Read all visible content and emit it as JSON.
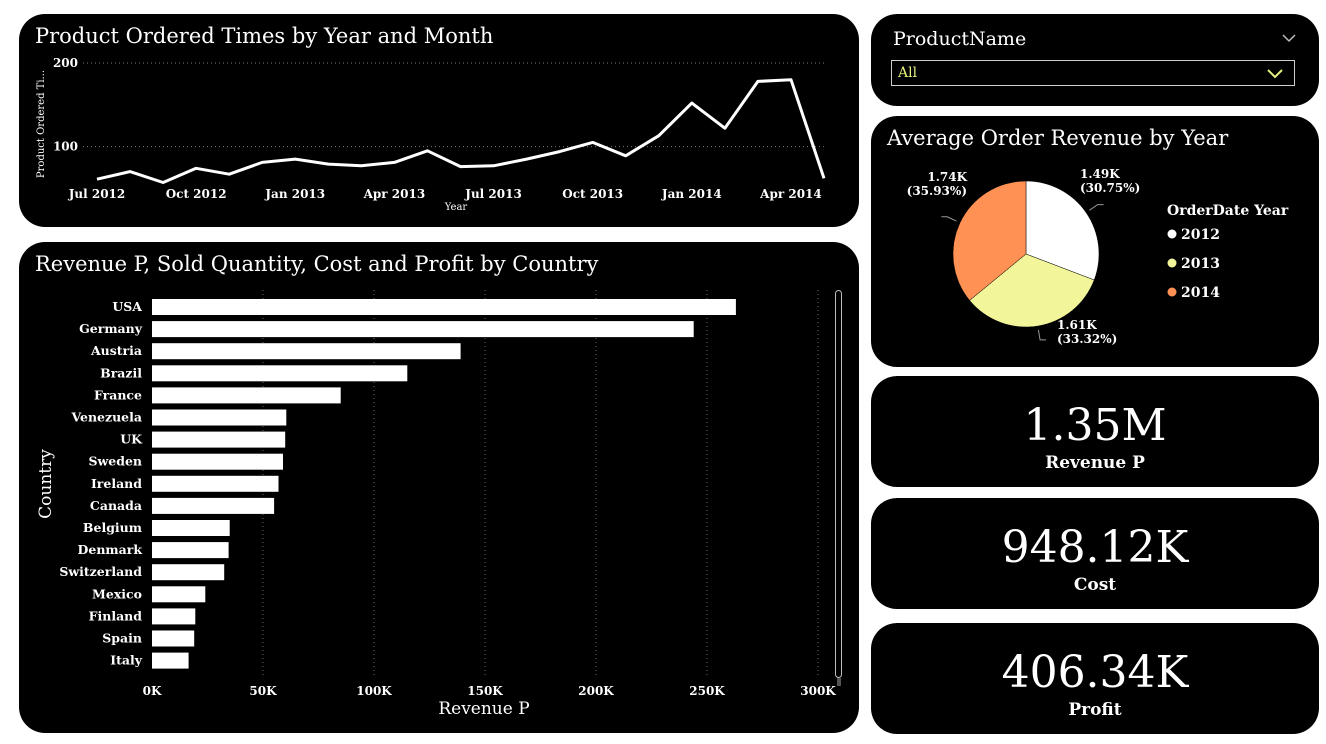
{
  "line_panel": {
    "title": "Product Ordered Times by Year and Month"
  },
  "bar_panel": {
    "title": "Revenue P, Sold Quantity, Cost and Profit by Country"
  },
  "pie_panel": {
    "title": "Average Order Revenue by Year"
  },
  "slicer": {
    "title": "ProductName",
    "value": "All"
  },
  "kpis": [
    {
      "value": "1.35M",
      "label": "Revenue P"
    },
    {
      "value": "948.12K",
      "label": "Cost"
    },
    {
      "value": "406.34K",
      "label": "Profit"
    }
  ],
  "colors": {
    "background": "#000000",
    "line": "#ffffff",
    "bar": "#ffffff",
    "pie_2012": "#ffffff",
    "pie_2013": "#f2f59a",
    "pie_2014": "#ff9155",
    "slicer_value": "#e6f07a"
  },
  "chart_data": [
    {
      "type": "line",
      "title": "Product Ordered Times by Year and Month",
      "xlabel": "Year",
      "ylabel": "Product Ordered Ti...",
      "yticks": [
        100,
        200
      ],
      "ylim": [
        60,
        200
      ],
      "xtick_labels": [
        "Jul 2012",
        "Oct 2012",
        "Jan 2013",
        "Apr 2013",
        "Jul 2013",
        "Oct 2013",
        "Jan 2014",
        "Apr 2014"
      ],
      "xtick_index": [
        0,
        3,
        6,
        9,
        12,
        15,
        18,
        21
      ],
      "values": [
        61,
        70,
        57,
        74,
        67,
        81,
        85,
        79,
        77,
        81,
        95,
        76,
        77,
        85,
        94,
        105,
        89,
        113,
        152,
        122,
        178,
        180,
        62
      ]
    },
    {
      "type": "bar",
      "orientation": "horizontal",
      "title": "Revenue P, Sold Quantity, Cost and Profit by Country",
      "xlabel": "Revenue P",
      "ylabel": "Country",
      "xlim": [
        0,
        300000
      ],
      "xtick_labels": [
        "0K",
        "50K",
        "100K",
        "150K",
        "200K",
        "250K",
        "300K"
      ],
      "xtick_values": [
        0,
        50000,
        100000,
        150000,
        200000,
        250000,
        300000
      ],
      "categories": [
        "USA",
        "Germany",
        "Austria",
        "Brazil",
        "France",
        "Venezuela",
        "UK",
        "Sweden",
        "Ireland",
        "Canada",
        "Belgium",
        "Denmark",
        "Switzerland",
        "Mexico",
        "Finland",
        "Spain",
        "Italy"
      ],
      "values": [
        263000,
        244000,
        139000,
        115000,
        85000,
        60500,
        60000,
        59000,
        57000,
        55000,
        35000,
        34500,
        32500,
        24000,
        19500,
        19000,
        16500
      ]
    },
    {
      "type": "pie",
      "title": "Average Order Revenue by Year",
      "legend_title": "OrderDate Year",
      "categories": [
        "2012",
        "2013",
        "2014"
      ],
      "values": [
        1490,
        1610,
        1740
      ],
      "value_labels": [
        "1.49K",
        "1.61K",
        "1.74K"
      ],
      "percent_labels": [
        "(30.75%)",
        "(33.32%)",
        "(35.93%)"
      ],
      "percents": [
        30.75,
        33.32,
        35.93
      ]
    }
  ]
}
